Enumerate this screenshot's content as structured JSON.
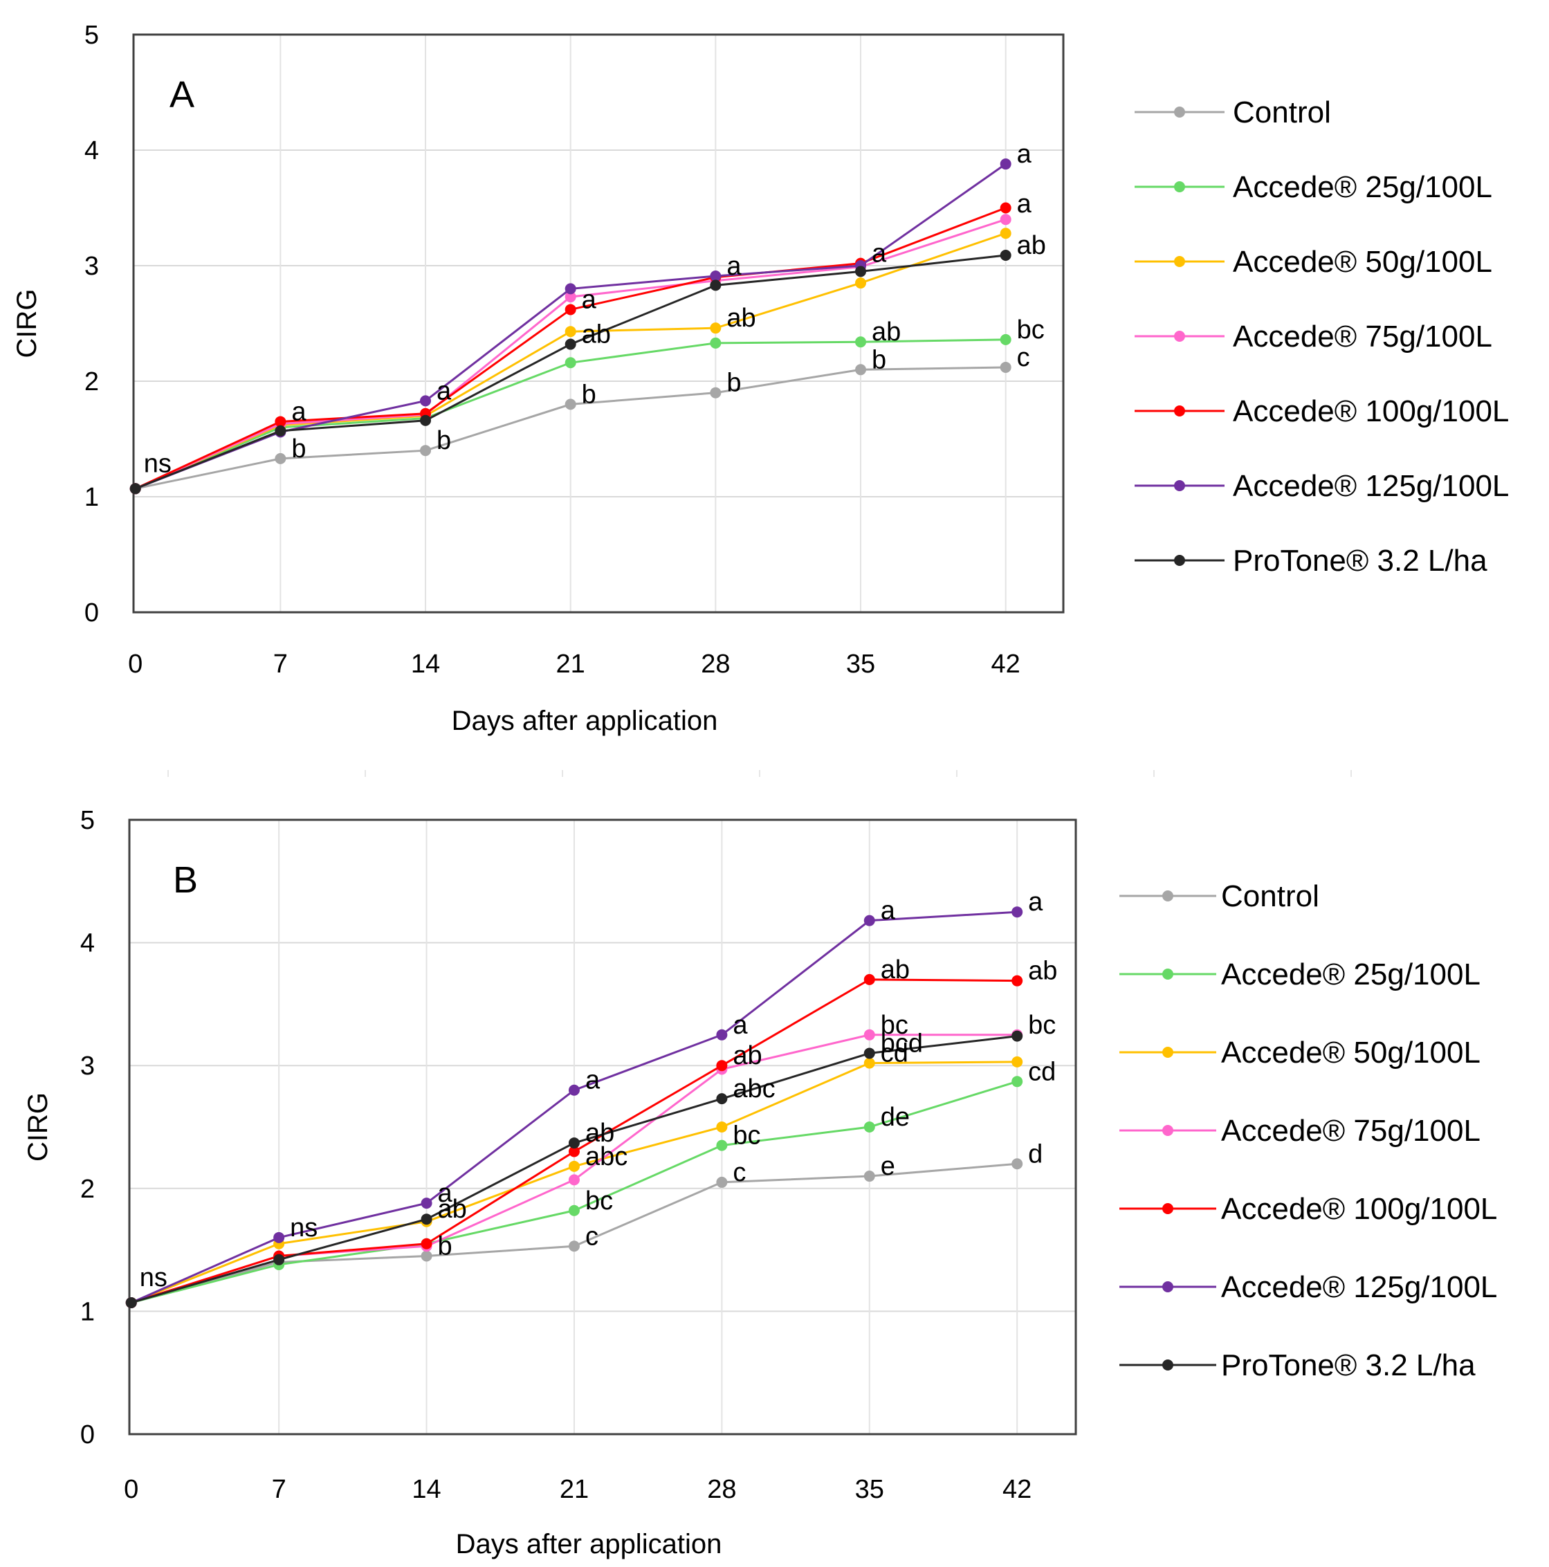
{
  "chart_data": [
    {
      "type": "line",
      "panel_label": "A",
      "xlabel": "Days after application",
      "ylabel": "CIRG",
      "x": [
        0,
        7,
        14,
        21,
        28,
        35,
        42
      ],
      "x_tick_labels": [
        "0",
        "7",
        "14",
        "21",
        "28",
        "35",
        "42"
      ],
      "ylim": [
        0,
        5
      ],
      "y_ticks": [
        0,
        1,
        2,
        3,
        4,
        5
      ],
      "grid": true,
      "legend_position": "right",
      "series": [
        {
          "name": "Control",
          "color": "#A6A6A6",
          "values": [
            1.07,
            1.33,
            1.4,
            1.8,
            1.9,
            2.1,
            2.12
          ]
        },
        {
          "name": "Accede® 25g/100L",
          "color": "#66D966",
          "values": [
            1.07,
            1.6,
            1.68,
            2.16,
            2.33,
            2.34,
            2.36
          ]
        },
        {
          "name": "Accede® 50g/100L",
          "color": "#FFC000",
          "values": [
            1.07,
            1.62,
            1.7,
            2.43,
            2.46,
            2.85,
            3.28
          ]
        },
        {
          "name": "Accede® 75g/100L",
          "color": "#FF66CC",
          "values": [
            1.07,
            1.63,
            1.71,
            2.73,
            2.87,
            2.99,
            3.4
          ]
        },
        {
          "name": "Accede® 100g/100L",
          "color": "#FF0000",
          "values": [
            1.07,
            1.65,
            1.72,
            2.62,
            2.9,
            3.02,
            3.5
          ]
        },
        {
          "name": "Accede® 125g/100L",
          "color": "#7030A0",
          "values": [
            1.07,
            1.56,
            1.83,
            2.8,
            2.91,
            3.0,
            3.88
          ]
        },
        {
          "name": "ProTone® 3.2 L/ha",
          "color": "#262626",
          "values": [
            1.07,
            1.57,
            1.66,
            2.32,
            2.83,
            2.95,
            3.09
          ]
        }
      ],
      "annotations": [
        {
          "text": "ns",
          "x": 0,
          "y": 1.07
        },
        {
          "text": "a",
          "x": 7,
          "y": 1.65
        },
        {
          "text": "b",
          "x": 7,
          "y": 1.33
        },
        {
          "text": "a",
          "x": 14,
          "y": 1.83
        },
        {
          "text": "b",
          "x": 14,
          "y": 1.4
        },
        {
          "text": "a",
          "x": 21,
          "y": 2.62
        },
        {
          "text": "ab",
          "x": 21,
          "y": 2.32
        },
        {
          "text": "b",
          "x": 21,
          "y": 1.8
        },
        {
          "text": "a",
          "x": 28,
          "y": 2.91
        },
        {
          "text": "ab",
          "x": 28,
          "y": 2.46
        },
        {
          "text": "b",
          "x": 28,
          "y": 1.9
        },
        {
          "text": "a",
          "x": 35,
          "y": 3.02
        },
        {
          "text": "ab",
          "x": 35,
          "y": 2.34
        },
        {
          "text": "b",
          "x": 35,
          "y": 2.1
        },
        {
          "text": "a",
          "x": 42,
          "y": 3.88
        },
        {
          "text": "a",
          "x": 42,
          "y": 3.45
        },
        {
          "text": "ab",
          "x": 42,
          "y": 3.09
        },
        {
          "text": "bc",
          "x": 42,
          "y": 2.36
        },
        {
          "text": "c",
          "x": 42,
          "y": 2.12
        }
      ]
    },
    {
      "type": "line",
      "panel_label": "B",
      "xlabel": "Days after application",
      "ylabel": "CIRG",
      "x": [
        0,
        7,
        14,
        21,
        28,
        35,
        42
      ],
      "x_tick_labels": [
        "0",
        "7",
        "14",
        "21",
        "28",
        "35",
        "42"
      ],
      "ylim": [
        0,
        5
      ],
      "y_ticks": [
        0,
        1,
        2,
        3,
        4,
        5
      ],
      "grid": true,
      "legend_position": "right",
      "series": [
        {
          "name": "Control",
          "color": "#A6A6A6",
          "values": [
            1.07,
            1.4,
            1.45,
            1.53,
            2.05,
            2.1,
            2.2
          ]
        },
        {
          "name": "Accede® 25g/100L",
          "color": "#66D966",
          "values": [
            1.07,
            1.38,
            1.55,
            1.82,
            2.35,
            2.5,
            2.87
          ]
        },
        {
          "name": "Accede® 50g/100L",
          "color": "#FFC000",
          "values": [
            1.07,
            1.55,
            1.73,
            2.18,
            2.5,
            3.02,
            3.03
          ]
        },
        {
          "name": "Accede® 75g/100L",
          "color": "#FF66CC",
          "values": [
            1.07,
            1.45,
            1.53,
            2.07,
            2.97,
            3.25,
            3.25
          ]
        },
        {
          "name": "Accede® 100g/100L",
          "color": "#FF0000",
          "values": [
            1.07,
            1.45,
            1.55,
            2.3,
            3.0,
            3.7,
            3.69
          ]
        },
        {
          "name": "Accede® 125g/100L",
          "color": "#7030A0",
          "values": [
            1.07,
            1.6,
            1.88,
            2.8,
            3.25,
            4.18,
            4.25
          ]
        },
        {
          "name": "ProTone® 3.2 L/ha",
          "color": "#262626",
          "values": [
            1.07,
            1.42,
            1.75,
            2.37,
            2.73,
            3.1,
            3.24
          ]
        }
      ],
      "annotations": [
        {
          "text": "ns",
          "x": 0,
          "y": 1.07
        },
        {
          "text": "ns",
          "x": 7,
          "y": 1.6
        },
        {
          "text": "a",
          "x": 14,
          "y": 1.88
        },
        {
          "text": "ab",
          "x": 14,
          "y": 1.75
        },
        {
          "text": "b",
          "x": 14,
          "y": 1.45
        },
        {
          "text": "a",
          "x": 21,
          "y": 2.8
        },
        {
          "text": "ab",
          "x": 21,
          "y": 2.37
        },
        {
          "text": "abc",
          "x": 21,
          "y": 2.18
        },
        {
          "text": "bc",
          "x": 21,
          "y": 1.82
        },
        {
          "text": "c",
          "x": 21,
          "y": 1.53
        },
        {
          "text": "a",
          "x": 28,
          "y": 3.25
        },
        {
          "text": "ab",
          "x": 28,
          "y": 3.0
        },
        {
          "text": "abc",
          "x": 28,
          "y": 2.73
        },
        {
          "text": "bc",
          "x": 28,
          "y": 2.35
        },
        {
          "text": "c",
          "x": 28,
          "y": 2.05
        },
        {
          "text": "a",
          "x": 35,
          "y": 4.18
        },
        {
          "text": "ab",
          "x": 35,
          "y": 3.7
        },
        {
          "text": "bc",
          "x": 35,
          "y": 3.25
        },
        {
          "text": "bcd",
          "x": 35,
          "y": 3.1
        },
        {
          "text": "cd",
          "x": 35,
          "y": 3.02
        },
        {
          "text": "de",
          "x": 35,
          "y": 2.5
        },
        {
          "text": "e",
          "x": 35,
          "y": 2.1
        },
        {
          "text": "a",
          "x": 42,
          "y": 4.25
        },
        {
          "text": "ab",
          "x": 42,
          "y": 3.69
        },
        {
          "text": "bc",
          "x": 42,
          "y": 3.25
        },
        {
          "text": "cd",
          "x": 42,
          "y": 2.87
        },
        {
          "text": "d",
          "x": 42,
          "y": 2.2
        }
      ]
    }
  ]
}
